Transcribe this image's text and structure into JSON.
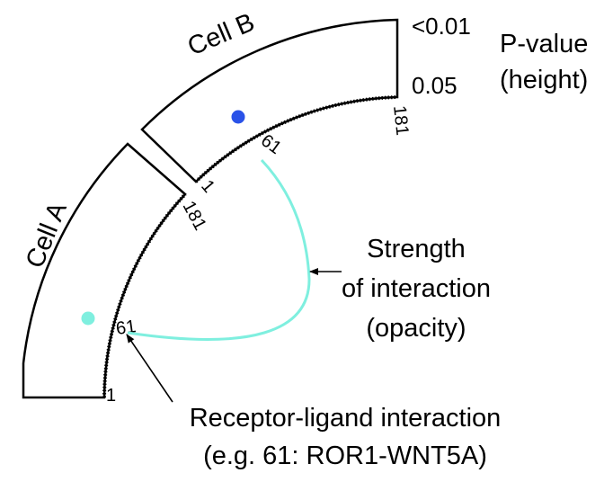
{
  "diagram": {
    "cells": [
      {
        "label": "Cell A",
        "color": "#7fefdf",
        "tick_start": "1",
        "tick_end": "181",
        "marked_index": "61"
      },
      {
        "label": "Cell B",
        "color": "#2a52e8",
        "tick_start": "1",
        "tick_end": "181",
        "marked_index": "61"
      }
    ],
    "pvalue_scale": {
      "top": "<0.01",
      "bottom": "0.05",
      "title_line1": "P-value",
      "title_line2": "(height)"
    },
    "strength_label": {
      "line1": "Strength",
      "line2": "of interaction",
      "line3": "(opacity)"
    },
    "interaction_label": {
      "line1": "Receptor-ligand interaction",
      "line2": "(e.g. 61: ROR1-WNT5A)"
    },
    "link_color": "#7fefdf",
    "outline_color": "#000000"
  }
}
